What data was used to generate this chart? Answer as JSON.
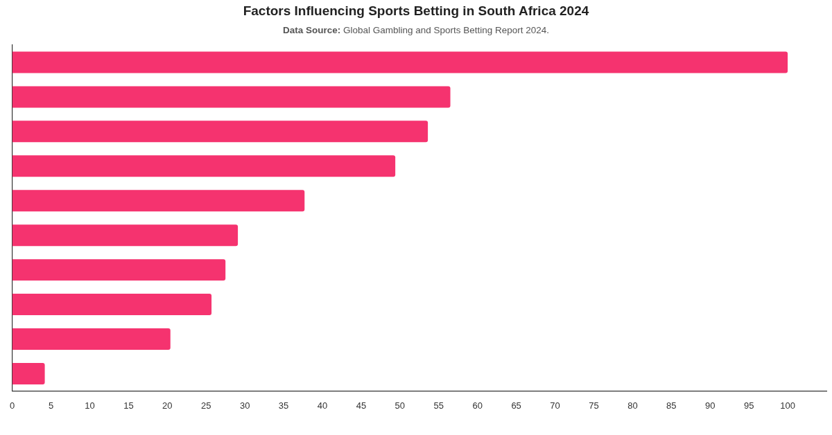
{
  "chart_data": {
    "type": "bar",
    "orientation": "horizontal",
    "title": "Factors Influencing Sports Betting in South Africa 2024",
    "subtitle": "Data Source: Global Gambling and Sports Betting Report 2024.",
    "categories": [
      null,
      null,
      null,
      null,
      null,
      null,
      null,
      null,
      null,
      null
    ],
    "values": [
      100,
      56.5,
      53.6,
      49.4,
      37.7,
      29.1,
      27.5,
      25.7,
      20.4,
      4.2
    ],
    "color": "#f5336f",
    "xlim": [
      0,
      105
    ],
    "xticks": [
      0,
      5,
      10,
      15,
      20,
      25,
      30,
      35,
      40,
      45,
      50,
      55,
      60,
      65,
      70,
      75,
      80,
      85,
      90,
      95,
      100
    ]
  }
}
